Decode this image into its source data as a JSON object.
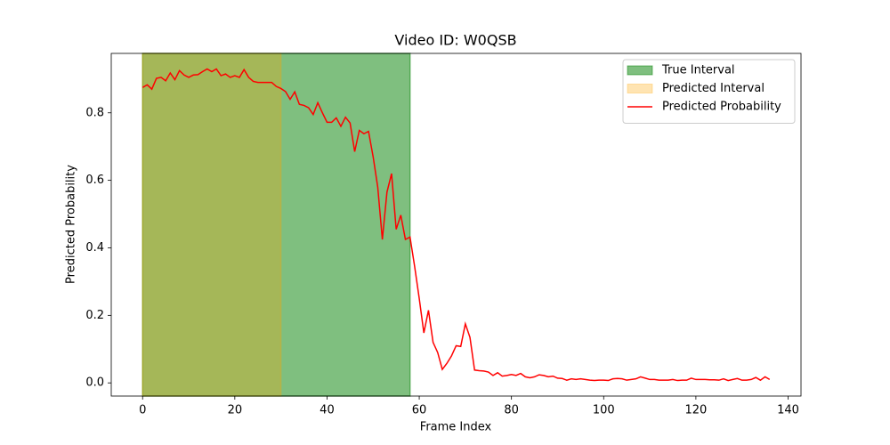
{
  "chart_data": {
    "type": "line",
    "title": "Video ID: W0QSB",
    "xlabel": "Frame Index",
    "ylabel": "Predicted Probability",
    "xlim": [
      -6.8,
      142.8
    ],
    "ylim": [
      -0.039,
      0.976
    ],
    "xticks": [
      0,
      20,
      40,
      60,
      80,
      100,
      120,
      140
    ],
    "yticks": [
      {
        "value": 0,
        "label": "0.0"
      },
      0.2,
      0.4,
      0.6,
      0.8
    ],
    "legend": "upper right",
    "intervals": [
      {
        "name": "True Interval",
        "color": "#008000",
        "opacity": 0.5,
        "x0": 0,
        "x1": 58
      },
      {
        "name": "Predicted Interval",
        "color": "#ffa500",
        "opacity": 0.3,
        "x0": 0,
        "x1": 30
      }
    ],
    "x": [
      0,
      1,
      2,
      3,
      4,
      5,
      6,
      7,
      8,
      9,
      10,
      11,
      12,
      13,
      14,
      15,
      16,
      17,
      18,
      19,
      20,
      21,
      22,
      23,
      24,
      25,
      26,
      27,
      28,
      29,
      30,
      31,
      32,
      33,
      34,
      35,
      36,
      37,
      38,
      39,
      40,
      41,
      42,
      43,
      44,
      45,
      46,
      47,
      48,
      49,
      50,
      51,
      52,
      53,
      54,
      55,
      56,
      57,
      58,
      59,
      60,
      61,
      62,
      63,
      64,
      65,
      66,
      67,
      68,
      69,
      70,
      71,
      72,
      73,
      74,
      75,
      76,
      77,
      78,
      79,
      80,
      81,
      82,
      83,
      84,
      85,
      86,
      87,
      88,
      89,
      90,
      91,
      92,
      93,
      94,
      95,
      96,
      97,
      98,
      99,
      100,
      101,
      102,
      103,
      104,
      105,
      106,
      107,
      108,
      109,
      110,
      111,
      112,
      113,
      114,
      115,
      116,
      117,
      118,
      119,
      120,
      121,
      122,
      123,
      124,
      125,
      126,
      127,
      128,
      129,
      130,
      131,
      132,
      133,
      134,
      135,
      136
    ],
    "series": [
      {
        "name": "Predicted Probability",
        "color": "#ff0000",
        "values": [
          0.875,
          0.883,
          0.87,
          0.902,
          0.905,
          0.895,
          0.918,
          0.898,
          0.925,
          0.912,
          0.905,
          0.912,
          0.913,
          0.922,
          0.93,
          0.922,
          0.93,
          0.91,
          0.915,
          0.905,
          0.91,
          0.905,
          0.928,
          0.905,
          0.893,
          0.89,
          0.89,
          0.89,
          0.89,
          0.878,
          0.872,
          0.863,
          0.84,
          0.862,
          0.825,
          0.822,
          0.815,
          0.795,
          0.83,
          0.8,
          0.772,
          0.772,
          0.785,
          0.76,
          0.787,
          0.77,
          0.685,
          0.748,
          0.738,
          0.745,
          0.67,
          0.58,
          0.425,
          0.565,
          0.62,
          0.455,
          0.497,
          0.425,
          0.432,
          0.345,
          0.25,
          0.148,
          0.215,
          0.12,
          0.09,
          0.04,
          0.058,
          0.08,
          0.11,
          0.108,
          0.175,
          0.135,
          0.038,
          0.036,
          0.035,
          0.032,
          0.022,
          0.03,
          0.02,
          0.022,
          0.025,
          0.022,
          0.028,
          0.018,
          0.015,
          0.018,
          0.024,
          0.022,
          0.018,
          0.02,
          0.014,
          0.013,
          0.008,
          0.012,
          0.01,
          0.012,
          0.01,
          0.008,
          0.007,
          0.008,
          0.008,
          0.007,
          0.012,
          0.013,
          0.012,
          0.008,
          0.01,
          0.012,
          0.018,
          0.014,
          0.01,
          0.01,
          0.008,
          0.008,
          0.008,
          0.01,
          0.007,
          0.008,
          0.008,
          0.014,
          0.01,
          0.01,
          0.01,
          0.009,
          0.009,
          0.008,
          0.012,
          0.007,
          0.01,
          0.013,
          0.008,
          0.008,
          0.01,
          0.016,
          0.008,
          0.018,
          0.01
        ]
      }
    ]
  }
}
